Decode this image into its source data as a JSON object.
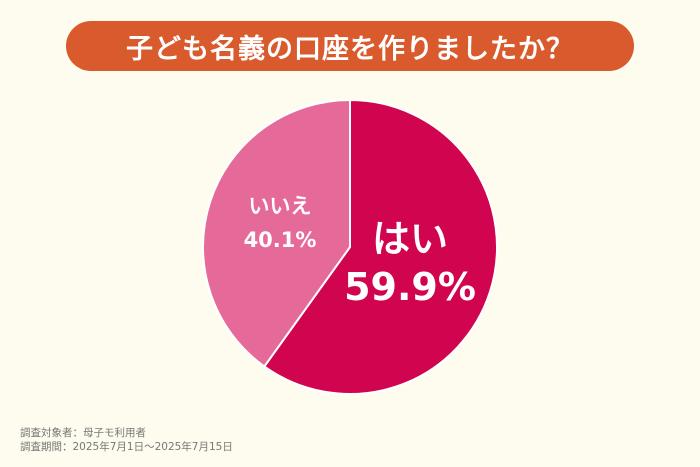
{
  "title": "子ども名義の口座を作りましたか？",
  "chart_data": {
    "type": "pie",
    "title": "子ども名義の口座を作りましたか？",
    "slices": [
      {
        "label": "はい",
        "value": 59.9,
        "value_label": "59.9%",
        "color": "#d0044f"
      },
      {
        "label": "いいえ",
        "value": 40.1,
        "value_label": "40.1%",
        "color": "#e56999"
      }
    ],
    "start_angle_deg": 0,
    "direction": "clockwise"
  },
  "footnotes": {
    "subjects": "調査対象者：母子モ利用者",
    "period": "調査期間：2025年7月1日〜2025年7月15日"
  },
  "colors": {
    "background": "#fdfcee",
    "title_pill": "#d95a2c"
  }
}
